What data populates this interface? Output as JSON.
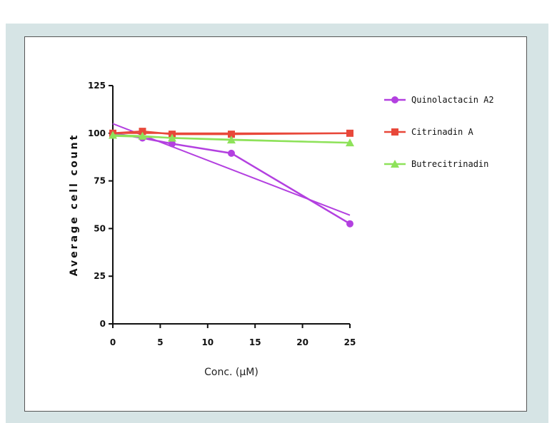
{
  "chart_data": {
    "type": "line",
    "title": "",
    "xlabel": "Conc. (μM)",
    "ylabel": "Average cell count",
    "xlim": [
      0,
      25
    ],
    "ylim": [
      0,
      125
    ],
    "xticks": [
      0,
      5,
      10,
      15,
      20,
      25
    ],
    "yticks": [
      0,
      25,
      50,
      75,
      100,
      125
    ],
    "x_tick_labels": [
      "0",
      "5",
      "10",
      "15",
      "20",
      "25"
    ],
    "y_tick_labels": [
      "0",
      "25",
      "50",
      "75",
      "100",
      "125"
    ],
    "grid": false,
    "legend_position": "right",
    "series": [
      {
        "name": "Quinolactacin A2",
        "color": "#b340e0",
        "marker": "circle",
        "x": [
          0,
          3.125,
          6.25,
          12.5,
          25
        ],
        "y": [
          100,
          97.5,
          94.5,
          89.5,
          52.5
        ],
        "fit": {
          "x": [
            0,
            25
          ],
          "y": [
            105,
            57
          ]
        }
      },
      {
        "name": "Citrinadin A",
        "color": "#e8483a",
        "marker": "square",
        "x": [
          0,
          3.125,
          6.25,
          12.5,
          25
        ],
        "y": [
          100,
          101,
          99.5,
          99.5,
          100
        ],
        "fit": {
          "x": [
            0,
            25
          ],
          "y": [
            100,
            100
          ]
        }
      },
      {
        "name": "Butrecitrinadin",
        "color": "#8ee25a",
        "marker": "triangle",
        "x": [
          0,
          3.125,
          6.25,
          12.5,
          25
        ],
        "y": [
          99,
          98.5,
          97.5,
          96.5,
          95
        ],
        "fit": {
          "x": [
            0,
            25
          ],
          "y": [
            98.5,
            95
          ]
        }
      }
    ]
  }
}
